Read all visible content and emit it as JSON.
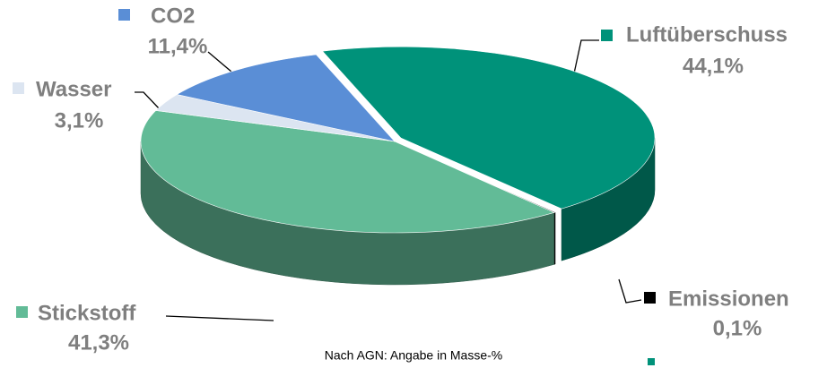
{
  "chart_data": {
    "type": "pie",
    "categories": [
      "Luftüberschuss",
      "Emissionen",
      "Stickstoff",
      "Wasser",
      "CO2"
    ],
    "values": [
      44.1,
      0.1,
      41.3,
      3.1,
      11.4
    ],
    "value_labels": [
      "44,1%",
      "0,1%",
      "41,3%",
      "3,1%",
      "11,4%"
    ],
    "colors": [
      "#00927a",
      "#000000",
      "#62bb97",
      "#dce5f1",
      "#5a8ed6"
    ],
    "caption": "Nach AGN: Angabe in Masse-%"
  }
}
